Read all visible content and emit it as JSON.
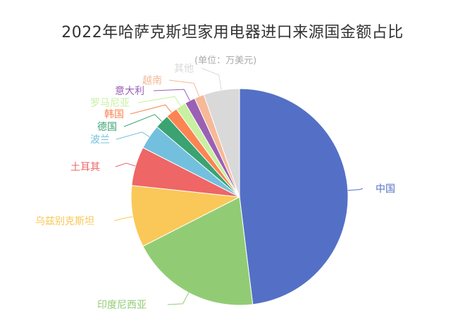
{
  "chart_data": {
    "type": "pie",
    "title": "2022年哈萨克斯坦家用电器进口来源国金额占比",
    "subtitle": "(单位：万美元)",
    "start_angle_deg": 90,
    "direction": "clockwise",
    "slices": [
      {
        "label": "中国",
        "value": 49.5,
        "color": "#5470c6"
      },
      {
        "label": "印度尼西亚",
        "value": 20.0,
        "color": "#91cc75"
      },
      {
        "label": "乌兹别克斯坦",
        "value": 9.5,
        "color": "#fac858"
      },
      {
        "label": "土耳其",
        "value": 6.0,
        "color": "#ee6666"
      },
      {
        "label": "波兰",
        "value": 3.8,
        "color": "#73c0de"
      },
      {
        "label": "德国",
        "value": 2.2,
        "color": "#3ba272"
      },
      {
        "label": "韩国",
        "value": 1.8,
        "color": "#fc8452"
      },
      {
        "label": "罗马尼亚",
        "value": 1.6,
        "color": "#c8f0a0"
      },
      {
        "label": "意大利",
        "value": 1.6,
        "color": "#9a60b4"
      },
      {
        "label": "越南",
        "value": 1.5,
        "color": "#f5b998"
      },
      {
        "label": "其他",
        "value": 5.5,
        "color": "#d9d9d9"
      }
    ]
  }
}
